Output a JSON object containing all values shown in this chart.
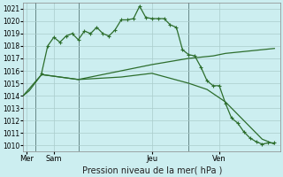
{
  "background_color": "#cceef0",
  "grid_color": "#aacccc",
  "line_color": "#2d6e2d",
  "xlim": [
    0,
    21
  ],
  "ylim": [
    1009.5,
    1021.5
  ],
  "yticks": [
    1010,
    1011,
    1012,
    1013,
    1014,
    1015,
    1016,
    1017,
    1018,
    1019,
    1020,
    1021
  ],
  "xlabel": "Pression niveau de la mer( hPa )",
  "day_labels": [
    "Mer",
    "Sam",
    "Jeu",
    "Ven"
  ],
  "day_positions": [
    0.3,
    2.5,
    10.5,
    16.0
  ],
  "day_vlines": [
    1.0,
    4.5,
    13.5
  ],
  "series_upper": {
    "x": [
      1.5,
      2.0,
      2.5,
      3.0,
      3.5,
      4.0,
      4.5,
      5.0,
      5.5,
      6.0,
      6.5,
      7.0,
      7.5,
      8.0,
      8.5,
      9.0,
      9.5,
      10.0,
      10.5,
      11.0,
      11.5,
      12.0,
      12.5,
      13.0,
      13.5,
      14.0,
      14.5,
      15.0,
      15.5,
      16.0,
      16.5,
      17.0,
      17.5,
      18.0,
      18.5,
      19.0,
      19.5,
      20.0,
      20.5
    ],
    "y": [
      1015.8,
      1018.0,
      1018.7,
      1018.3,
      1018.8,
      1019.0,
      1018.5,
      1019.2,
      1019.0,
      1019.5,
      1019.0,
      1018.8,
      1019.3,
      1020.1,
      1020.1,
      1020.2,
      1021.2,
      1020.3,
      1020.2,
      1020.2,
      1020.2,
      1019.7,
      1019.5,
      1017.7,
      1017.3,
      1017.2,
      1016.3,
      1015.2,
      1014.8,
      1014.8,
      1013.4,
      1012.2,
      1011.8,
      1011.1,
      1010.6,
      1010.3,
      1010.1,
      1010.2,
      1010.2
    ]
  },
  "series_rise": {
    "x": [
      0,
      1.5,
      4.5,
      8.0,
      10.5,
      13.5,
      14.5,
      15.5,
      16.5,
      17.5,
      18.5,
      19.5,
      20.5
    ],
    "y": [
      1014.0,
      1015.7,
      1015.3,
      1016.0,
      1016.5,
      1017.0,
      1017.1,
      1017.2,
      1017.4,
      1017.5,
      1017.6,
      1017.7,
      1017.8
    ]
  },
  "series_fall": {
    "x": [
      0,
      0.5,
      1.5,
      4.5,
      8.0,
      10.5,
      13.5,
      15.0,
      16.5,
      18.0,
      19.5,
      20.5
    ],
    "y": [
      1014.0,
      1014.4,
      1015.7,
      1015.3,
      1015.5,
      1015.8,
      1015.0,
      1014.5,
      1013.5,
      1012.0,
      1010.5,
      1010.1
    ]
  }
}
